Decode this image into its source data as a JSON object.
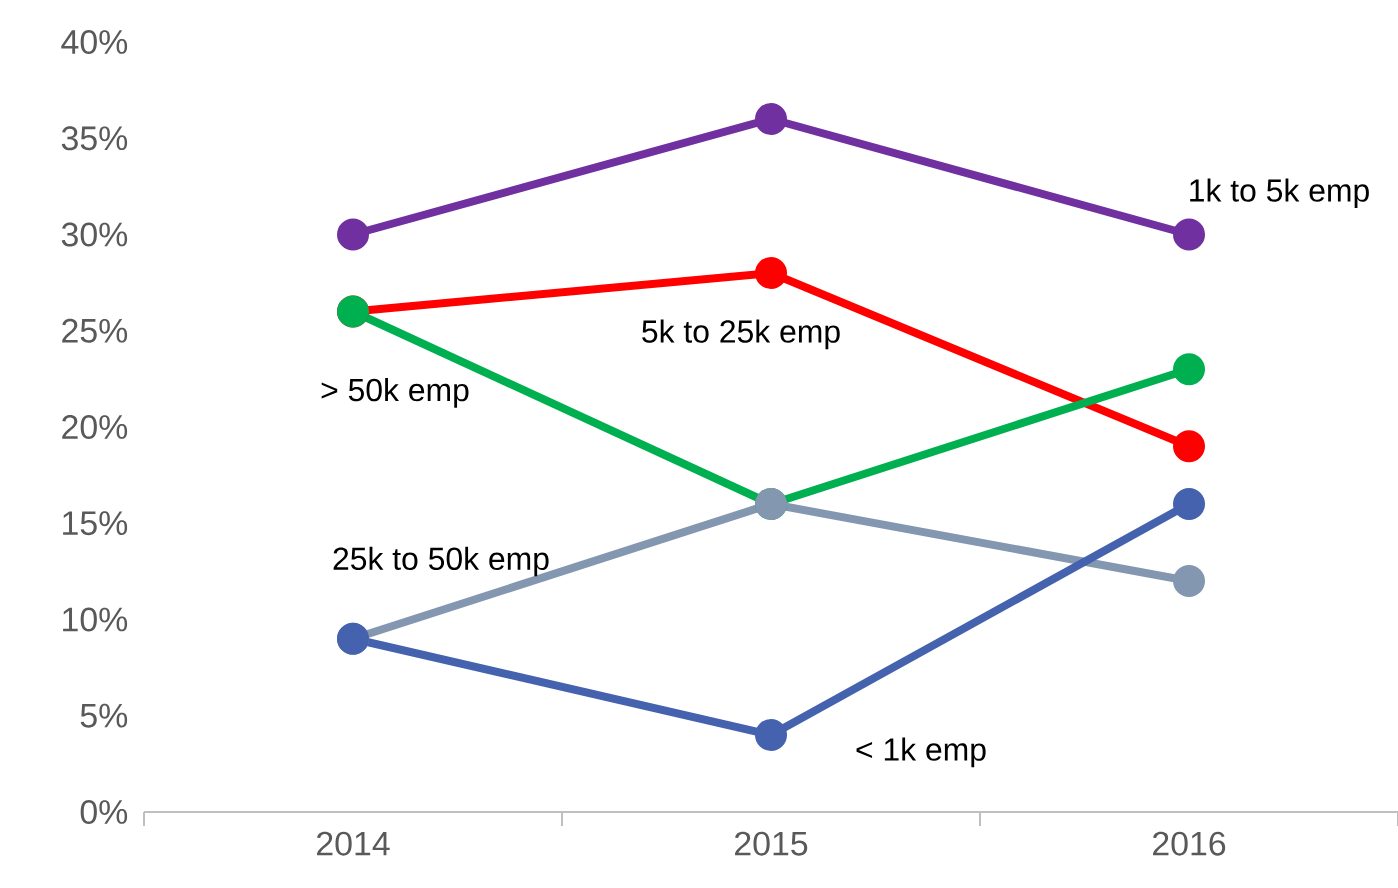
{
  "chart_data": {
    "type": "line",
    "categories": [
      "2014",
      "2015",
      "2016"
    ],
    "series": [
      {
        "name": "1k to 5k emp",
        "color": "#7030a0",
        "values": [
          30,
          36,
          30
        ]
      },
      {
        "name": "5k to 25k emp",
        "color": "#ff0000",
        "values": [
          26,
          28,
          19
        ]
      },
      {
        "name": "> 50k emp",
        "color": "#00b050",
        "values": [
          26,
          16,
          23
        ]
      },
      {
        "name": "25k to 50k emp",
        "color": "#8497b0",
        "values": [
          9,
          16,
          12
        ]
      },
      {
        "name": "< 1k emp",
        "color": "#4462ad",
        "values": [
          9,
          4,
          16
        ]
      }
    ],
    "ylim": [
      0,
      40
    ],
    "yticks": [
      {
        "value": 0,
        "label": "0%"
      },
      {
        "value": 5,
        "label": "5%"
      },
      {
        "value": 10,
        "label": "10%"
      },
      {
        "value": 15,
        "label": "15%"
      },
      {
        "value": 20,
        "label": "20%"
      },
      {
        "value": 25,
        "label": "25%"
      },
      {
        "value": 30,
        "label": "30%"
      },
      {
        "value": 35,
        "label": "35%"
      },
      {
        "value": 40,
        "label": "40%"
      }
    ],
    "grid": false,
    "legend": false,
    "marker": "circle",
    "line_style": "solid"
  }
}
